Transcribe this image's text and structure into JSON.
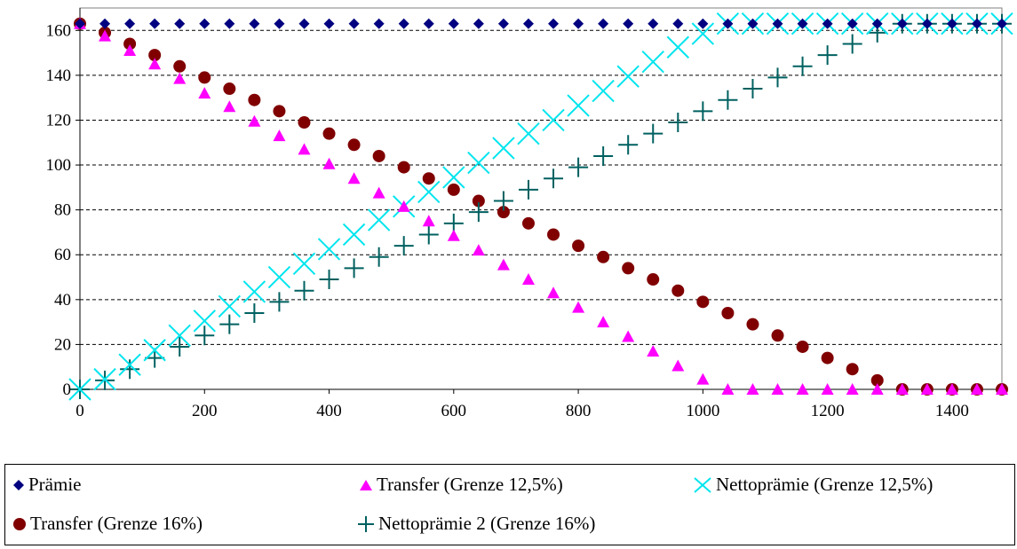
{
  "chart_data": {
    "type": "scatter",
    "xlim": [
      0,
      1480
    ],
    "ylim": [
      0,
      170
    ],
    "x_ticks": [
      0,
      200,
      400,
      600,
      800,
      1000,
      1200,
      1400
    ],
    "y_ticks": [
      0,
      20,
      40,
      60,
      80,
      100,
      120,
      140,
      160
    ],
    "grid": "horizontal dashed",
    "legend_position": "bottom",
    "x": [
      0,
      40,
      80,
      120,
      160,
      200,
      240,
      280,
      320,
      360,
      400,
      440,
      480,
      520,
      560,
      600,
      640,
      680,
      720,
      760,
      800,
      840,
      880,
      920,
      960,
      1000,
      1040,
      1080,
      1120,
      1160,
      1200,
      1240,
      1280,
      1320,
      1360,
      1400,
      1440,
      1480
    ],
    "series": [
      {
        "name": "Prämie",
        "marker": "diamond",
        "color": "#000080",
        "values": [
          163,
          163,
          163,
          163,
          163,
          163,
          163,
          163,
          163,
          163,
          163,
          163,
          163,
          163,
          163,
          163,
          163,
          163,
          163,
          163,
          163,
          163,
          163,
          163,
          163,
          163,
          163,
          163,
          163,
          163,
          163,
          163,
          163,
          163,
          163,
          163,
          163,
          163
        ]
      },
      {
        "name": "Transfer (Grenze 12,5%)",
        "marker": "triangle",
        "color": "#ff00ff",
        "values": [
          163,
          157.5,
          151,
          145,
          138.5,
          132,
          126,
          119.5,
          113,
          107,
          100.5,
          94,
          87.5,
          81.5,
          75,
          68.5,
          62,
          55.5,
          49,
          43,
          36.5,
          30,
          23.5,
          17,
          10.5,
          4.5,
          0,
          0,
          0,
          0,
          0,
          0,
          0,
          0,
          0,
          0,
          0,
          0
        ]
      },
      {
        "name": "Nettoprämie (Grenze 12,5%)",
        "marker": "x",
        "color": "#00e5ee",
        "values": [
          0,
          4.5,
          11,
          17.5,
          24,
          30.5,
          37,
          43.5,
          50,
          56,
          62.5,
          69,
          75.5,
          81.5,
          88,
          94.5,
          101,
          107.5,
          114,
          120,
          126.5,
          133,
          139.5,
          146,
          152.5,
          158.5,
          163,
          163,
          163,
          163,
          163,
          163,
          163,
          163,
          163,
          163,
          163,
          163
        ]
      },
      {
        "name": "Transfer (Grenze 16%)",
        "marker": "circle",
        "color": "#800000",
        "values": [
          163,
          159,
          154,
          149,
          144,
          139,
          134,
          129,
          124,
          119,
          114,
          109,
          104,
          99,
          94,
          89,
          84,
          79,
          74,
          69,
          64,
          59,
          54,
          49,
          44,
          39,
          34,
          29,
          24,
          19,
          14,
          9,
          4,
          0,
          0,
          0,
          0,
          0
        ]
      },
      {
        "name": "Nettoprämie 2 (Grenze 16%)",
        "marker": "plus",
        "color": "#006060",
        "values": [
          0,
          4,
          9,
          14,
          19,
          24,
          29,
          34,
          39,
          44,
          49,
          54,
          59,
          64,
          69,
          74,
          79,
          84,
          89,
          94,
          99,
          104,
          109,
          114,
          119,
          124,
          129,
          134,
          139,
          144,
          149,
          154,
          159,
          163,
          163,
          163,
          163,
          163
        ]
      }
    ]
  }
}
